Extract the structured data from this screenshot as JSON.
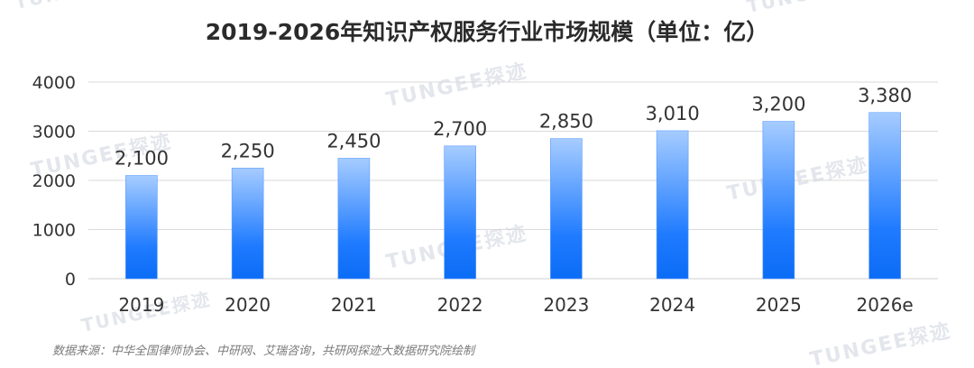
{
  "chart_data": {
    "type": "bar",
    "title": "2019-2026年知识产权服务行业市场规模（单位：亿）",
    "categories": [
      "2019",
      "2020",
      "2021",
      "2022",
      "2023",
      "2024",
      "2025",
      "2026e"
    ],
    "values": [
      2100,
      2250,
      2450,
      2700,
      2850,
      3010,
      3200,
      3380
    ],
    "data_labels": [
      "2,100",
      "2,250",
      "2,450",
      "2,700",
      "2,850",
      "3,010",
      "3,200",
      "3,380"
    ],
    "yticks": [
      0,
      1000,
      2000,
      3000,
      4000
    ],
    "ylim": [
      0,
      4000
    ],
    "grid": true,
    "legend": "none",
    "bar_gradient": [
      "#a6ccff",
      "#1f7bff",
      "#0b6cf5"
    ]
  },
  "footer": {
    "source": "数据来源：中华全国律师协会、中研网、艾瑞咨询，共研网探迹大数据研究院绘制"
  },
  "watermark": {
    "text": "TUNGEE探迹"
  },
  "colors": {
    "title": "#2b2b2b",
    "axis_text": "#333333",
    "gridline": "#d9d9d9",
    "source_text": "#7a7a7a"
  }
}
